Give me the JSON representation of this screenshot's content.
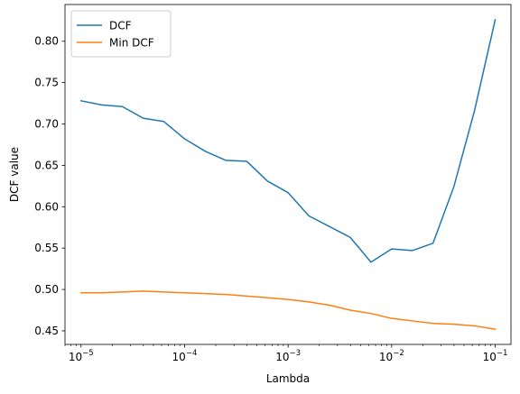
{
  "chart_data": {
    "type": "line",
    "xlabel": "Lambda",
    "ylabel": "DCF value",
    "xscale": "log",
    "xlim": [
      7e-06,
      0.142
    ],
    "ylim": [
      0.4336,
      0.8444
    ],
    "x_ticks": [
      {
        "value": 1e-05,
        "base": "10",
        "exp": "−5"
      },
      {
        "value": 0.0001,
        "base": "10",
        "exp": "−4"
      },
      {
        "value": 0.001,
        "base": "10",
        "exp": "−3"
      },
      {
        "value": 0.01,
        "base": "10",
        "exp": "−2"
      },
      {
        "value": 0.1,
        "base": "10",
        "exp": "−1"
      }
    ],
    "y_ticks": [
      {
        "value": 0.45,
        "label": "0.45"
      },
      {
        "value": 0.5,
        "label": "0.50"
      },
      {
        "value": 0.55,
        "label": "0.55"
      },
      {
        "value": 0.6,
        "label": "0.60"
      },
      {
        "value": 0.65,
        "label": "0.65"
      },
      {
        "value": 0.7,
        "label": "0.70"
      },
      {
        "value": 0.75,
        "label": "0.75"
      },
      {
        "value": 0.8,
        "label": "0.80"
      }
    ],
    "legend_position": "top-left",
    "grid": false,
    "x": [
      1e-05,
      1.585e-05,
      2.512e-05,
      3.981e-05,
      6.31e-05,
      0.0001,
      0.0001585,
      0.0002512,
      0.0003981,
      0.000631,
      0.001,
      0.001585,
      0.002512,
      0.003981,
      0.00631,
      0.01,
      0.01585,
      0.02512,
      0.03981,
      0.0631,
      0.1
    ],
    "series": [
      {
        "name": "DCF",
        "color": "#1f77b4",
        "values": [
          0.728,
          0.723,
          0.721,
          0.707,
          0.703,
          0.682,
          0.667,
          0.656,
          0.655,
          0.631,
          0.617,
          0.589,
          0.576,
          0.563,
          0.533,
          0.549,
          0.547,
          0.556,
          0.624,
          0.716,
          0.826
        ]
      },
      {
        "name": "Min DCF",
        "color": "#ff7f0e",
        "values": [
          0.496,
          0.496,
          0.497,
          0.498,
          0.497,
          0.496,
          0.495,
          0.494,
          0.492,
          0.49,
          0.488,
          0.485,
          0.481,
          0.475,
          0.471,
          0.465,
          0.462,
          0.459,
          0.458,
          0.456,
          0.452
        ]
      }
    ]
  }
}
